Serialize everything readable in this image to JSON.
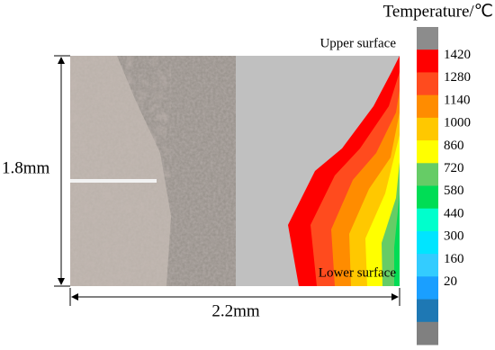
{
  "colorbar": {
    "title": "Temperature/℃",
    "labels": [
      "1420",
      "1280",
      "1140",
      "1000",
      "860",
      "720",
      "580",
      "440",
      "300",
      "160",
      "20"
    ],
    "colors": [
      "#8c8c8c",
      "#ff0000",
      "#ff4b1e",
      "#ff8c00",
      "#ffc800",
      "#ffff00",
      "#66cc66",
      "#00dd55",
      "#00ffcc",
      "#00e5ff",
      "#33ccff",
      "#1a9fff",
      "#1e78b4",
      "#808080"
    ]
  },
  "annotations": {
    "upper": "Upper surface",
    "lower": "Lower surface",
    "height": "1.8mm",
    "width": "2.2mm"
  }
}
